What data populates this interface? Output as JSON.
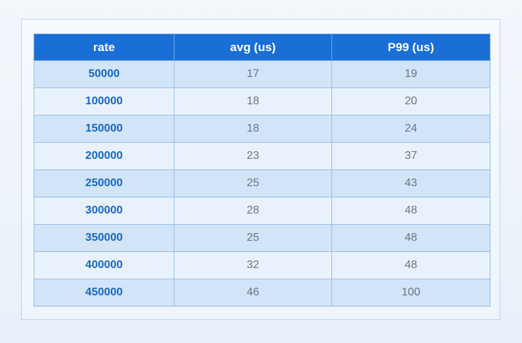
{
  "table": {
    "headers": [
      "rate",
      "avg (us)",
      "P99 (us)"
    ],
    "rows": [
      {
        "rate": "50000",
        "avg": "17",
        "p99": "19"
      },
      {
        "rate": "100000",
        "avg": "18",
        "p99": "20"
      },
      {
        "rate": "150000",
        "avg": "18",
        "p99": "24"
      },
      {
        "rate": "200000",
        "avg": "23",
        "p99": "37"
      },
      {
        "rate": "250000",
        "avg": "25",
        "p99": "43"
      },
      {
        "rate": "300000",
        "avg": "28",
        "p99": "48"
      },
      {
        "rate": "350000",
        "avg": "25",
        "p99": "48"
      },
      {
        "rate": "400000",
        "avg": "32",
        "p99": "48"
      },
      {
        "rate": "450000",
        "avg": "46",
        "p99": "100"
      }
    ]
  },
  "colors": {
    "header_bg": "#1a6fd6",
    "row_odd": "#d2e4f7",
    "row_even": "#e9f2fc",
    "rate_text": "#1767c4",
    "value_text": "#6a7480"
  }
}
